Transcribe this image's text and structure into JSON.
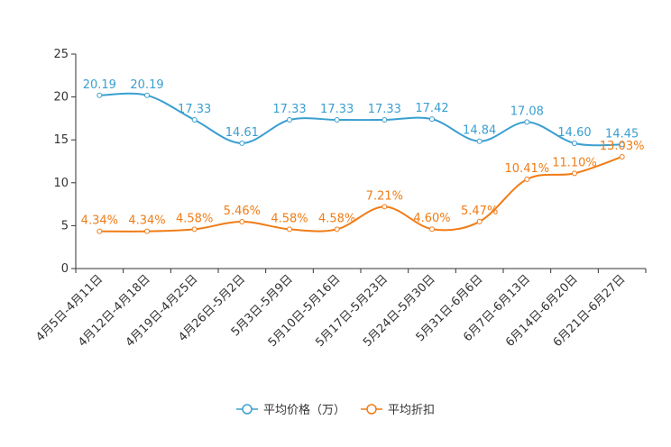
{
  "chart_data": {
    "type": "line",
    "categories": [
      "4月5日-4月11日",
      "4月12日-4月18日",
      "4月19日-4月25日",
      "4月26日-5月2日",
      "5月3日-5月9日",
      "5月10日-5月16日",
      "5月17日-5月23日",
      "5月24日-5月30日",
      "5月31日-6月6日",
      "6月7日-6月13日",
      "6月14日-6月20日",
      "6月21日-6月27日"
    ],
    "series": [
      {
        "name": "平均价格（万）",
        "color": "#3a9fd0",
        "values": [
          20.19,
          20.19,
          17.33,
          14.61,
          17.33,
          17.33,
          17.33,
          17.42,
          14.84,
          17.08,
          14.6,
          14.45
        ],
        "labels": [
          "20.19",
          "20.19",
          "17.33",
          "14.61",
          "17.33",
          "17.33",
          "17.33",
          "17.42",
          "14.84",
          "17.08",
          "14.60",
          "14.45"
        ]
      },
      {
        "name": "平均折扣",
        "color": "#f07c16",
        "values": [
          4.34,
          4.34,
          4.58,
          5.46,
          4.58,
          4.58,
          7.21,
          4.6,
          5.47,
          10.41,
          11.1,
          13.03
        ],
        "labels": [
          "4.34%",
          "4.34%",
          "4.58%",
          "5.46%",
          "4.58%",
          "4.58%",
          "7.21%",
          "4.60%",
          "5.47%",
          "10.41%",
          "11.10%",
          "13.03%"
        ]
      }
    ],
    "ylim": [
      0,
      25
    ],
    "yticks": [
      "0",
      "5",
      "10",
      "15",
      "20",
      "25"
    ],
    "legend_position": "bottom-center"
  }
}
